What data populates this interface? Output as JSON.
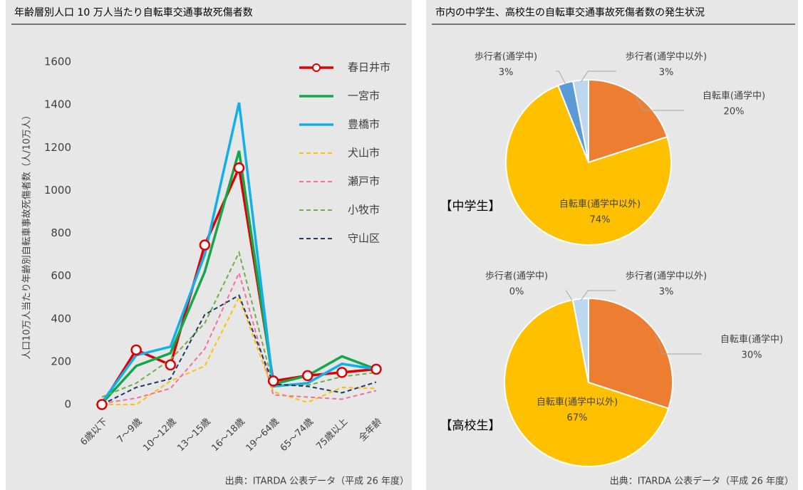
{
  "chart_data": [
    {
      "type": "line",
      "title": "年齢層別人口 10 万人当たり自転車交通事故死傷者数",
      "y_label": "人口10万人当たり年齢別自転車事故死傷者数（人/10万人）",
      "source": "出典：ITARDA 公表データ（平成 26 年度）",
      "categories": [
        "6歳以下",
        "7～9歳",
        "10～12歳",
        "13～15歳",
        "16～18歳",
        "19～64歳",
        "65～74歳",
        "75歳以上",
        "全年齢"
      ],
      "ylim": [
        0,
        1600
      ],
      "yticks": [
        0,
        200,
        400,
        600,
        800,
        1000,
        1200,
        1400,
        1600
      ],
      "legend": "upper right",
      "series": [
        {
          "name": "春日井市",
          "color": "#e00000",
          "dashed": false,
          "marker": true,
          "values": [
            0,
            255,
            185,
            745,
            1105,
            110,
            135,
            150,
            165
          ]
        },
        {
          "name": "一宮市",
          "color": "#12a84a",
          "dashed": false,
          "marker": false,
          "values": [
            5,
            180,
            240,
            620,
            1185,
            95,
            135,
            225,
            165
          ]
        },
        {
          "name": "豊橋市",
          "color": "#12b0ea",
          "dashed": false,
          "marker": false,
          "values": [
            10,
            230,
            270,
            700,
            1410,
            85,
            100,
            190,
            165
          ]
        },
        {
          "name": "犬山市",
          "color": "#ffc000",
          "dashed": true,
          "marker": false,
          "values": [
            0,
            0,
            110,
            180,
            500,
            60,
            10,
            80,
            75
          ]
        },
        {
          "name": "瀬戸市",
          "color": "#f0709a",
          "dashed": true,
          "marker": false,
          "values": [
            5,
            30,
            75,
            260,
            615,
            45,
            35,
            25,
            65
          ]
        },
        {
          "name": "小牧市",
          "color": "#70ad47",
          "dashed": true,
          "marker": false,
          "values": [
            35,
            100,
            210,
            380,
            710,
            90,
            90,
            130,
            150
          ]
        },
        {
          "name": "守山区",
          "color": "#1f3864",
          "dashed": true,
          "marker": false,
          "values": [
            0,
            80,
            120,
            420,
            510,
            95,
            85,
            55,
            105
          ]
        }
      ]
    },
    {
      "type": "pie",
      "title": "市内の中学生、高校生の自転車交通事故死傷者数の発生状況",
      "label": "【中学生】",
      "source": "出典：ITARDA 公表データ（平成 26 年度）",
      "categories": [
        "自転車(通学中)",
        "自転車(通学中以外)",
        "歩行者(通学中)",
        "歩行者(通学中以外)"
      ],
      "values": [
        20,
        74,
        3,
        3
      ],
      "value_labels": [
        "20%",
        "74%",
        "3%",
        "3%"
      ],
      "colors": [
        "#ed7d31",
        "#ffc000",
        "#5b9bd5",
        "#bdd7ee"
      ]
    },
    {
      "type": "pie",
      "label": "【高校生】",
      "categories": [
        "自転車(通学中)",
        "自転車(通学中以外)",
        "歩行者(通学中)",
        "歩行者(通学中以外)"
      ],
      "values": [
        30,
        67,
        0,
        3
      ],
      "value_labels": [
        "30%",
        "67%",
        "0%",
        "3%"
      ],
      "colors": [
        "#ed7d31",
        "#ffc000",
        "#5b9bd5",
        "#bdd7ee"
      ]
    }
  ]
}
